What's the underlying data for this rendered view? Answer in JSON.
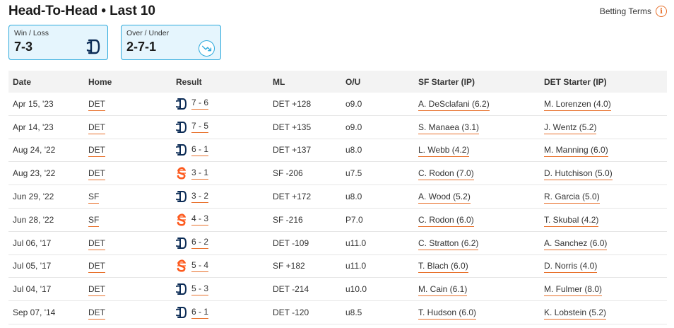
{
  "header": {
    "title": "Head-To-Head • Last 10",
    "betting_terms": "Betting Terms"
  },
  "summary": [
    {
      "label": "Win / Loss",
      "value": "7-3"
    },
    {
      "label": "Over / Under",
      "value": "2-7-1"
    }
  ],
  "colors": {
    "accent": "#e8702a",
    "card_border": "#2ca9dc",
    "card_bg": "#e5f5fd",
    "det_navy": "#0c2c56",
    "sf_orange": "#fd5a1e"
  },
  "table": {
    "columns": [
      "Date",
      "Home",
      "Result",
      "ML",
      "O/U",
      "SF Starter (IP)",
      "DET Starter (IP)"
    ],
    "rows": [
      {
        "date": "Apr 15, '23",
        "home": "DET",
        "winner": "DET",
        "score": "7 - 6",
        "ml": "DET +128",
        "ou": "o9.0",
        "sf_starter": "A. DeSclafani (6.2)",
        "det_starter": "M. Lorenzen (4.0)"
      },
      {
        "date": "Apr 14, '23",
        "home": "DET",
        "winner": "DET",
        "score": "7 - 5",
        "ml": "DET +135",
        "ou": "o9.0",
        "sf_starter": "S. Manaea (3.1)",
        "det_starter": "J. Wentz (5.2)"
      },
      {
        "date": "Aug 24, '22",
        "home": "DET",
        "winner": "DET",
        "score": "6 - 1",
        "ml": "DET +137",
        "ou": "u8.0",
        "sf_starter": "L. Webb (4.2)",
        "det_starter": "M. Manning (6.0)"
      },
      {
        "date": "Aug 23, '22",
        "home": "DET",
        "winner": "SF",
        "score": "3 - 1",
        "ml": "SF -206",
        "ou": "u7.5",
        "sf_starter": "C. Rodon (7.0)",
        "det_starter": "D. Hutchison (5.0)"
      },
      {
        "date": "Jun 29, '22",
        "home": "SF",
        "winner": "DET",
        "score": "3 - 2",
        "ml": "DET +172",
        "ou": "u8.0",
        "sf_starter": "A. Wood (5.2)",
        "det_starter": "R. Garcia (5.0)"
      },
      {
        "date": "Jun 28, '22",
        "home": "SF",
        "winner": "SF",
        "score": "4 - 3",
        "ml": "SF -216",
        "ou": "P7.0",
        "sf_starter": "C. Rodon (6.0)",
        "det_starter": "T. Skubal (4.2)"
      },
      {
        "date": "Jul 06, '17",
        "home": "DET",
        "winner": "DET",
        "score": "6 - 2",
        "ml": "DET -109",
        "ou": "u11.0",
        "sf_starter": "C. Stratton (6.2)",
        "det_starter": "A. Sanchez (6.0)"
      },
      {
        "date": "Jul 05, '17",
        "home": "DET",
        "winner": "SF",
        "score": "5 - 4",
        "ml": "SF +182",
        "ou": "u11.0",
        "sf_starter": "T. Blach (6.0)",
        "det_starter": "D. Norris (4.0)"
      },
      {
        "date": "Jul 04, '17",
        "home": "DET",
        "winner": "DET",
        "score": "5 - 3",
        "ml": "DET -214",
        "ou": "u10.0",
        "sf_starter": "M. Cain (6.1)",
        "det_starter": "M. Fulmer (8.0)"
      },
      {
        "date": "Sep 07, '14",
        "home": "DET",
        "winner": "DET",
        "score": "6 - 1",
        "ml": "DET -120",
        "ou": "u8.5",
        "sf_starter": "T. Hudson (6.0)",
        "det_starter": "K. Lobstein (5.2)"
      }
    ]
  }
}
